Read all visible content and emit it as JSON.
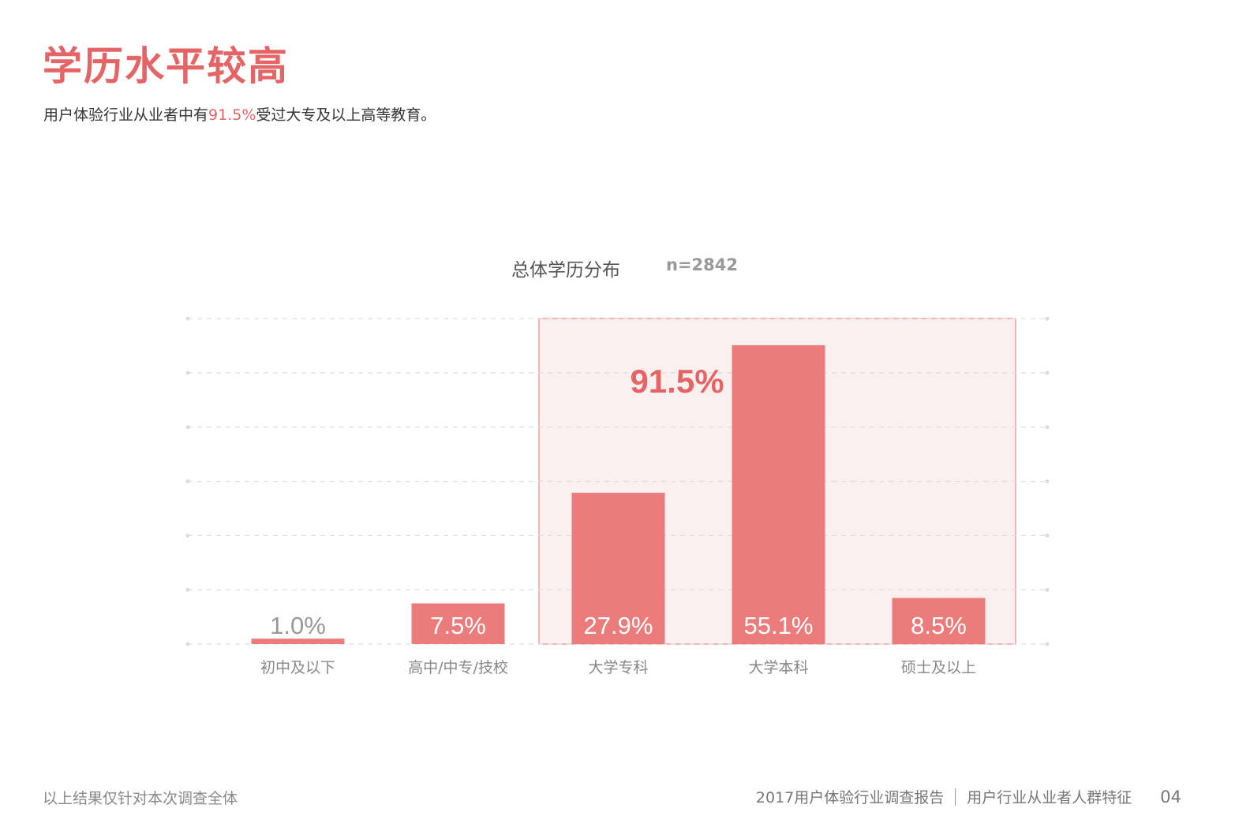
{
  "header": {
    "title": "学历水平较高",
    "subtitle_pre": "用户体验行业从业者中有",
    "subtitle_highlight": "91.5%",
    "subtitle_post": "受过大专及以上高等教育。"
  },
  "chart_title": "总体学历分布",
  "sample_size": "n=2842",
  "chart_data": {
    "type": "bar",
    "title": "总体学历分布",
    "categories": [
      "初中及以下",
      "高中/中专/技校",
      "大学专科",
      "大学本科",
      "硕士及以上"
    ],
    "values": [
      1.0,
      7.5,
      27.9,
      55.1,
      8.5
    ],
    "value_labels": [
      "1.0%",
      "7.5%",
      "27.9%",
      "55.1%",
      "8.5%"
    ],
    "ylim": [
      0,
      60
    ],
    "grid": true,
    "highlight": {
      "categories": [
        "大学专科",
        "大学本科",
        "硕士及以上"
      ],
      "label": "91.5%",
      "fill": "#fbf0f0",
      "border": "#e9898a"
    },
    "bar_color": "#ec7b7c",
    "low_label_color": "#999999",
    "label_color": "#ffffff"
  },
  "footer": {
    "note": "以上结果仅针对本次调查全体",
    "report": "2017用户体验行业调查报告",
    "section": "用户行业从业者人群特征",
    "page": "04"
  },
  "colors": {
    "accent": "#e56566",
    "bar": "#ec7b7c"
  }
}
